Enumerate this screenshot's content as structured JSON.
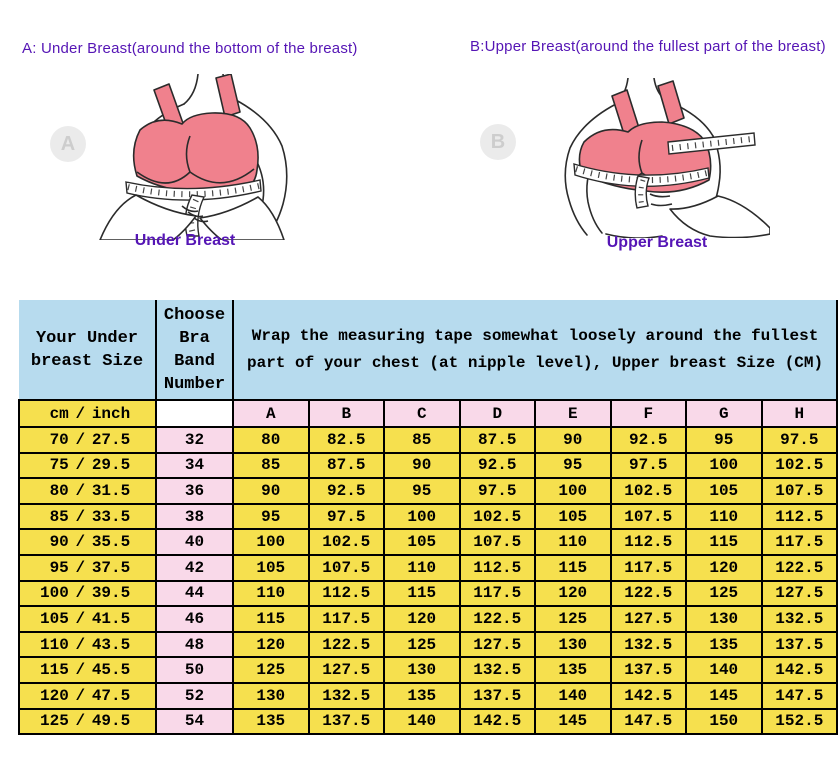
{
  "instructions": {
    "left_title": "A: Under Breast(around the bottom of the breast)",
    "right_title": "B:Upper Breast(around the fullest part of the breast)",
    "left_caption": "Under Breast",
    "right_caption": "Upper Breast",
    "left_watermark": "A",
    "right_watermark": "B"
  },
  "size_table": {
    "header": {
      "col1": "Your Under\nbreast Size",
      "col2": "Choose\nBra\nBand\nNumber",
      "col3": "Wrap the measuring tape somewhat loosely around the fullest\npart of your chest (at nipple level), Upper breast Size (CM)"
    },
    "subheader": {
      "unit_cm": "cm",
      "unit_inch": "inch",
      "band_label": "",
      "cup_columns": [
        "A",
        "B",
        "C",
        "D",
        "E",
        "F",
        "G",
        "H"
      ]
    },
    "separator": "/",
    "rows": [
      {
        "cm": "70",
        "inch": "27.5",
        "band": "32",
        "values": [
          "80",
          "82.5",
          "85",
          "87.5",
          "90",
          "92.5",
          "95",
          "97.5"
        ]
      },
      {
        "cm": "75",
        "inch": "29.5",
        "band": "34",
        "values": [
          "85",
          "87.5",
          "90",
          "92.5",
          "95",
          "97.5",
          "100",
          "102.5"
        ]
      },
      {
        "cm": "80",
        "inch": "31.5",
        "band": "36",
        "values": [
          "90",
          "92.5",
          "95",
          "97.5",
          "100",
          "102.5",
          "105",
          "107.5"
        ]
      },
      {
        "cm": "85",
        "inch": "33.5",
        "band": "38",
        "values": [
          "95",
          "97.5",
          "100",
          "102.5",
          "105",
          "107.5",
          "110",
          "112.5"
        ]
      },
      {
        "cm": "90",
        "inch": "35.5",
        "band": "40",
        "values": [
          "100",
          "102.5",
          "105",
          "107.5",
          "110",
          "112.5",
          "115",
          "117.5"
        ]
      },
      {
        "cm": "95",
        "inch": "37.5",
        "band": "42",
        "values": [
          "105",
          "107.5",
          "110",
          "112.5",
          "115",
          "117.5",
          "120",
          "122.5"
        ]
      },
      {
        "cm": "100",
        "inch": "39.5",
        "band": "44",
        "values": [
          "110",
          "112.5",
          "115",
          "117.5",
          "120",
          "122.5",
          "125",
          "127.5"
        ]
      },
      {
        "cm": "105",
        "inch": "41.5",
        "band": "46",
        "values": [
          "115",
          "117.5",
          "120",
          "122.5",
          "125",
          "127.5",
          "130",
          "132.5"
        ]
      },
      {
        "cm": "110",
        "inch": "43.5",
        "band": "48",
        "values": [
          "120",
          "122.5",
          "125",
          "127.5",
          "130",
          "132.5",
          "135",
          "137.5"
        ]
      },
      {
        "cm": "115",
        "inch": "45.5",
        "band": "50",
        "values": [
          "125",
          "127.5",
          "130",
          "132.5",
          "135",
          "137.5",
          "140",
          "142.5"
        ]
      },
      {
        "cm": "120",
        "inch": "47.5",
        "band": "52",
        "values": [
          "130",
          "132.5",
          "135",
          "137.5",
          "140",
          "142.5",
          "145",
          "147.5"
        ]
      },
      {
        "cm": "125",
        "inch": "49.5",
        "band": "54",
        "values": [
          "135",
          "137.5",
          "140",
          "142.5",
          "145",
          "147.5",
          "150",
          "152.5"
        ]
      }
    ]
  },
  "colors": {
    "title_purple": "#5515b5",
    "header_blue": "#b7dbee",
    "cell_yellow": "#f6e04e",
    "cell_pink": "#f9d9e9",
    "cell_white": "#ffffff",
    "border_black": "#000000",
    "bra_pink": "#f0818d",
    "watermark_gray": "#ebebeb"
  }
}
